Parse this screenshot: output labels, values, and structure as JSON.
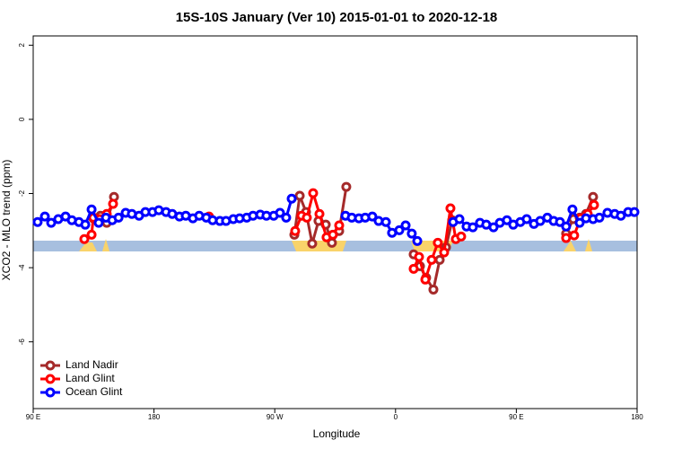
{
  "chart_data": {
    "type": "line",
    "title": "15S-10S January (Ver 10)   2015-01-01 to 2020-12-18",
    "x_label": "Longitude",
    "y_label": "XCO2 - MLO trend (ppm)",
    "xlim": [
      90,
      540
    ],
    "ylim": [
      -7.8,
      2.25
    ],
    "xticks": [
      {
        "value": 90,
        "label": "90 E"
      },
      180,
      {
        "value": 270,
        "label": "90 W"
      },
      {
        "value": 360,
        "label": "0"
      },
      {
        "value": 450,
        "label": "90 E"
      },
      {
        "value": 540,
        "label": "180"
      }
    ],
    "yticks": [
      -6,
      -4,
      -2,
      0,
      2
    ],
    "legend": "bottomleft",
    "series": [
      {
        "name": "Land Nadir",
        "color": "#a52a2a",
        "x": [
          134.8,
          140.1,
          144.8,
          150.2,
          null,
          284.6,
          288.6,
          293.3,
          297.9,
          302.6,
          308.0,
          312.6,
          318.0,
          323.3,
          null,
          373.5,
          378.2,
          382.8,
          388.2,
          392.9,
          397.6,
          402.2,
          null,
          487.1,
          492.5,
          497.2,
          501.9,
          507.2
        ],
        "values": [
          -2.67,
          -2.6,
          -2.79,
          -2.09,
          null,
          -3.11,
          -2.06,
          -2.5,
          -3.35,
          -2.74,
          -2.84,
          -3.33,
          -3.01,
          -1.82,
          null,
          -3.64,
          -3.96,
          -4.27,
          -4.59,
          -3.79,
          -3.45,
          -2.72,
          null,
          -3.08,
          -2.69,
          -2.65,
          -2.55,
          -2.09
        ]
      },
      {
        "name": "Land Glint",
        "color": "#ff0000",
        "x": [
          128.1,
          133.5,
          134.8,
          139.5,
          144.8,
          149.5,
          null,
          221.0,
          null,
          285.2,
          289.9,
          293.9,
          298.6,
          303.3,
          308.6,
          313.3,
          318.0,
          null,
          373.5,
          377.5,
          382.2,
          386.9,
          391.5,
          396.2,
          400.9,
          404.9,
          408.9,
          null,
          487.1,
          493.1,
          497.8,
          503.2,
          507.9
        ],
        "values": [
          -3.23,
          -3.11,
          -2.65,
          -2.69,
          -2.55,
          -2.28,
          null,
          -2.62,
          null,
          -3.01,
          -2.6,
          -2.65,
          -1.99,
          -2.55,
          -3.18,
          -3.11,
          -2.86,
          null,
          -4.03,
          -3.71,
          -4.32,
          -3.79,
          -3.33,
          -3.59,
          -2.4,
          -3.23,
          -3.16,
          null,
          -3.2,
          -3.13,
          -2.67,
          -2.55,
          -2.31
        ]
      },
      {
        "name": "Ocean Glint",
        "color": "#0000ff",
        "x": [
          93.3,
          98.7,
          103.4,
          108.7,
          114.1,
          118.8,
          124.1,
          128.8,
          133.5,
          138.8,
          144.2,
          148.9,
          153.6,
          158.9,
          163.5,
          168.9,
          173.6,
          178.9,
          183.6,
          189.0,
          193.6,
          199.0,
          203.7,
          209.0,
          213.7,
          219.0,
          223.7,
          229.1,
          233.7,
          239.1,
          243.8,
          249.1,
          253.8,
          259.2,
          263.8,
          269.2,
          273.9,
          278.5,
          282.6,
          null,
          322.7,
          327.4,
          332.7,
          337.4,
          342.7,
          347.4,
          352.8,
          357.4,
          362.8,
          367.5,
          372.1,
          null,
          376.2,
          null,
          402.9,
          407.6,
          412.9,
          417.6,
          422.9,
          427.6,
          433.0,
          437.7,
          443.0,
          447.7,
          453.0,
          457.7,
          463.1,
          467.8,
          473.1,
          477.8,
          482.5,
          487.1,
          491.8,
          497.2,
          501.9,
          507.2,
          511.9,
          517.9,
          523.3,
          527.9,
          533.3,
          538.0
        ],
        "values": [
          -2.77,
          -2.62,
          -2.79,
          -2.69,
          -2.62,
          -2.72,
          -2.77,
          -2.84,
          -2.43,
          -2.79,
          -2.65,
          -2.72,
          -2.65,
          -2.52,
          -2.55,
          -2.6,
          -2.5,
          -2.5,
          -2.45,
          -2.5,
          -2.55,
          -2.62,
          -2.6,
          -2.67,
          -2.6,
          -2.65,
          -2.72,
          -2.74,
          -2.74,
          -2.69,
          -2.67,
          -2.65,
          -2.6,
          -2.57,
          -2.6,
          -2.6,
          -2.52,
          -2.65,
          -2.14,
          null,
          -2.6,
          -2.65,
          -2.67,
          -2.65,
          -2.62,
          -2.74,
          -2.77,
          -3.06,
          -2.99,
          -2.86,
          -3.08,
          null,
          -3.28,
          null,
          -2.77,
          -2.69,
          -2.89,
          -2.91,
          -2.79,
          -2.84,
          -2.91,
          -2.79,
          -2.72,
          -2.84,
          -2.77,
          -2.69,
          -2.82,
          -2.74,
          -2.65,
          -2.74,
          -2.77,
          -2.89,
          -2.43,
          -2.79,
          -2.67,
          -2.69,
          -2.65,
          -2.52,
          -2.55,
          -2.6,
          -2.5,
          -2.5
        ]
      }
    ]
  }
}
